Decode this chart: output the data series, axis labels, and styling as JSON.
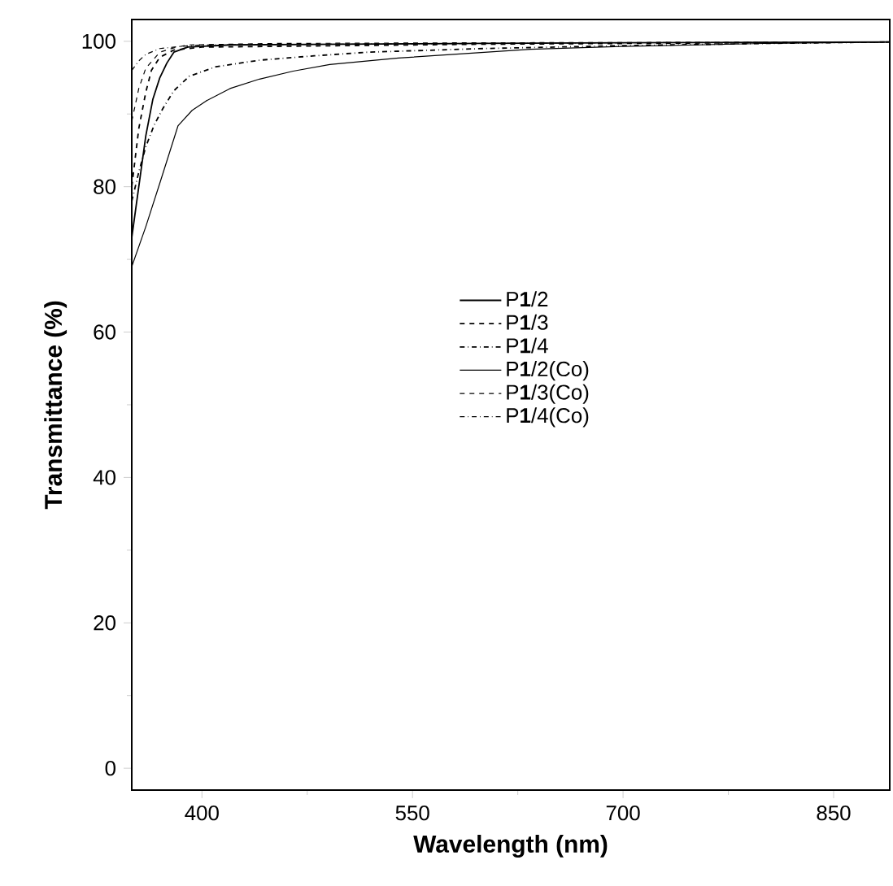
{
  "chart_data": {
    "type": "line",
    "xlabel": "Wavelength (nm)",
    "ylabel": "Transmittance (%)",
    "xlim": [
      350,
      890
    ],
    "ylim": [
      -3,
      103
    ],
    "xticks": [
      400,
      550,
      700,
      850
    ],
    "yticks": [
      0,
      20,
      40,
      60,
      80,
      100
    ],
    "legend": "center",
    "series": [
      {
        "name": "P**1**/2",
        "color": "#000000",
        "line_style": "solid",
        "x": [
          350,
          355,
          360,
          365,
          370,
          375,
          380,
          390,
          420,
          500,
          600,
          700,
          890
        ],
        "values": [
          73,
          80,
          87,
          92,
          95,
          97,
          98.5,
          99.2,
          99.5,
          99.6,
          99.7,
          99.8,
          99.9
        ]
      },
      {
        "name": "P**1**/3",
        "color": "#000000",
        "line_style": "dashed",
        "x": [
          350,
          355,
          360,
          364,
          370,
          380,
          400,
          500,
          600,
          700,
          890
        ],
        "values": [
          80,
          88,
          93,
          96,
          97.8,
          98.8,
          99.2,
          99.4,
          99.6,
          99.7,
          99.9
        ]
      },
      {
        "name": "P**1**/4",
        "color": "#000000",
        "line_style": "dashdotted",
        "x": [
          350,
          355,
          360,
          366,
          372,
          380,
          391,
          410,
          441,
          480,
          518,
          600,
          700,
          800,
          890
        ],
        "values": [
          78,
          82,
          85.5,
          88.5,
          90.7,
          93.2,
          95.2,
          96.5,
          97.4,
          98,
          98.5,
          99,
          99.4,
          99.7,
          99.9
        ]
      },
      {
        "name": "P**1**/2(Co)",
        "color": "#000000",
        "line_style": "solid",
        "x": [
          350,
          360,
          370,
          383,
          393,
          403,
          420,
          441,
          465,
          491,
          540,
          634,
          700,
          800,
          890
        ],
        "values": [
          69,
          74.5,
          80.5,
          88.4,
          90.5,
          91.8,
          93.5,
          94.8,
          95.9,
          96.8,
          97.7,
          98.9,
          99.3,
          99.7,
          99.9
        ]
      },
      {
        "name": "P**1**/3(Co)",
        "color": "#000000",
        "line_style": "dashed",
        "x": [
          350,
          355,
          360,
          370,
          380,
          390,
          450,
          600,
          890
        ],
        "values": [
          89,
          93.5,
          96.3,
          98.5,
          99.1,
          99.5,
          99.7,
          99.8,
          99.9
        ]
      },
      {
        "name": "P**1**/4(Co)",
        "color": "#000000",
        "line_style": "dashdotted",
        "x": [
          350,
          355,
          360,
          370,
          385,
          400,
          500,
          700,
          890
        ],
        "values": [
          96,
          97.3,
          98.2,
          99,
          99.3,
          99.5,
          99.6,
          99.8,
          99.9
        ]
      }
    ]
  }
}
